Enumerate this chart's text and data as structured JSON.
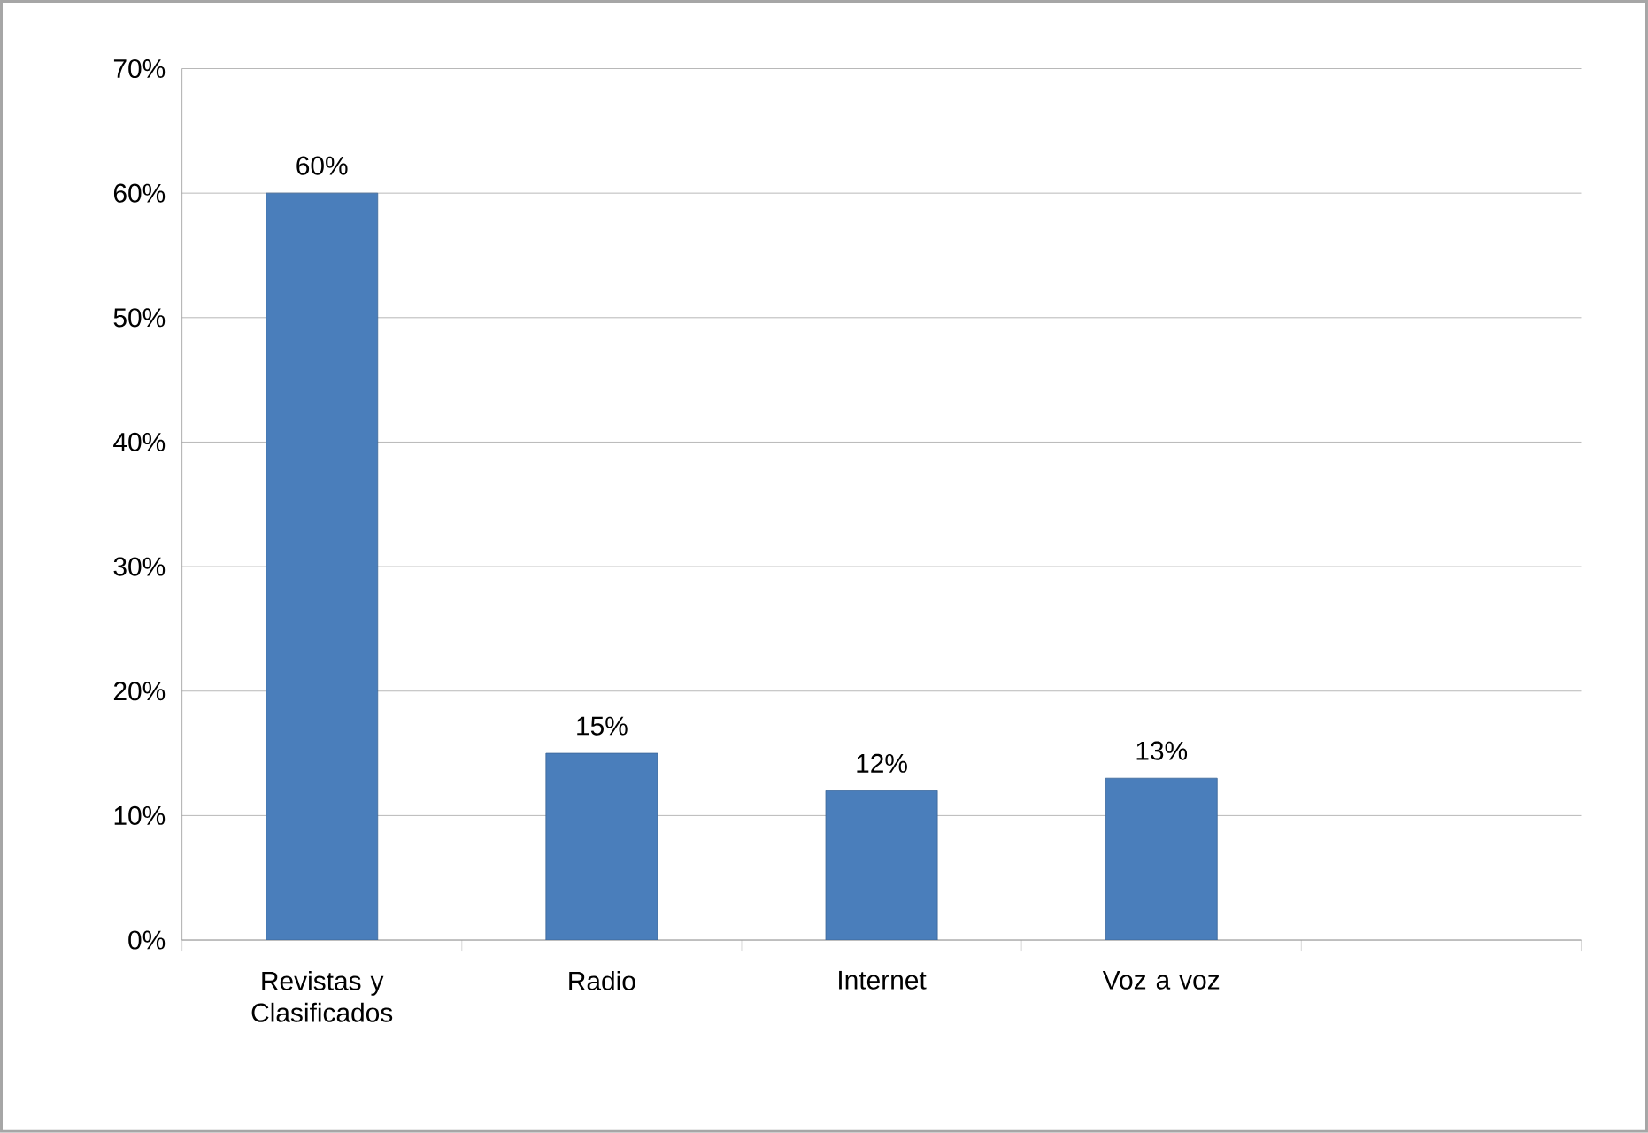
{
  "chart_data": {
    "type": "bar",
    "categories": [
      "Revistas y Clasificados",
      "Radio",
      "Internet",
      "Voz a voz",
      null
    ],
    "values": [
      60,
      15,
      12,
      13,
      null
    ],
    "value_labels": [
      "60%",
      "15%",
      "12%",
      "13%",
      null
    ],
    "color": "#4a7ebb",
    "ylim": [
      0,
      70
    ],
    "yticks": [
      {
        "value": 0,
        "label": "0%"
      },
      {
        "value": 10,
        "label": "10%"
      },
      {
        "value": 20,
        "label": "20%"
      },
      {
        "value": 30,
        "label": "30%"
      },
      {
        "value": 40,
        "label": "40%"
      },
      {
        "value": 50,
        "label": "50%"
      },
      {
        "value": 60,
        "label": "60%"
      },
      {
        "value": 70,
        "label": "70%"
      }
    ],
    "grid": "y"
  }
}
